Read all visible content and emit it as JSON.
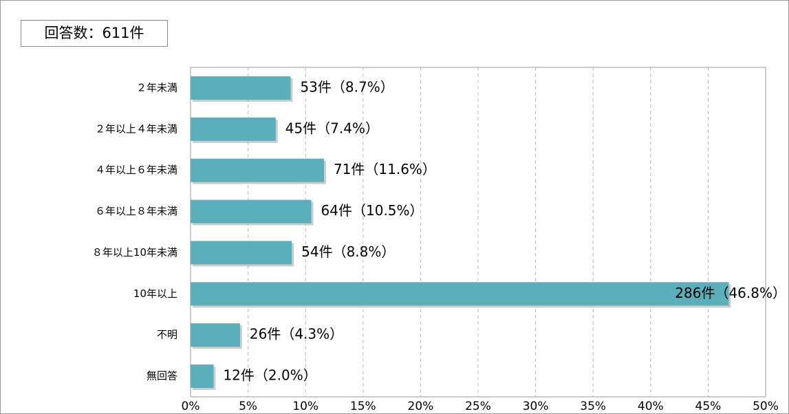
{
  "chart_data": {
    "type": "barh",
    "annotation": "回答数：611件",
    "categories": [
      "２年未満",
      "２年以上４年未満",
      "４年以上６年未満",
      "６年以上８年未満",
      "８年以上10年未満",
      "10年以上",
      "不明",
      "無回答"
    ],
    "values": [
      8.7,
      7.4,
      11.6,
      10.5,
      8.8,
      46.8,
      4.3,
      2.0
    ],
    "value_labels": [
      "53件（8.7%）",
      "45件（7.4%）",
      "71件（11.6%）",
      "64件（10.5%）",
      "54件（8.8%）",
      "286件（46.8%）",
      "26件（4.3%）",
      "12件（2.0%）"
    ],
    "color": "#5aafba",
    "xlim": [
      0,
      50
    ],
    "xticks": [
      {
        "value": 0,
        "label": "0%"
      },
      {
        "value": 5,
        "label": "5%"
      },
      {
        "value": 10,
        "label": "10%"
      },
      {
        "value": 15,
        "label": "15%"
      },
      {
        "value": 20,
        "label": "20%"
      },
      {
        "value": 25,
        "label": "25%"
      },
      {
        "value": 30,
        "label": "30%"
      },
      {
        "value": 35,
        "label": "35%"
      },
      {
        "value": 40,
        "label": "40%"
      },
      {
        "value": 45,
        "label": "45%"
      },
      {
        "value": 50,
        "label": "50%"
      }
    ],
    "grid": true
  }
}
